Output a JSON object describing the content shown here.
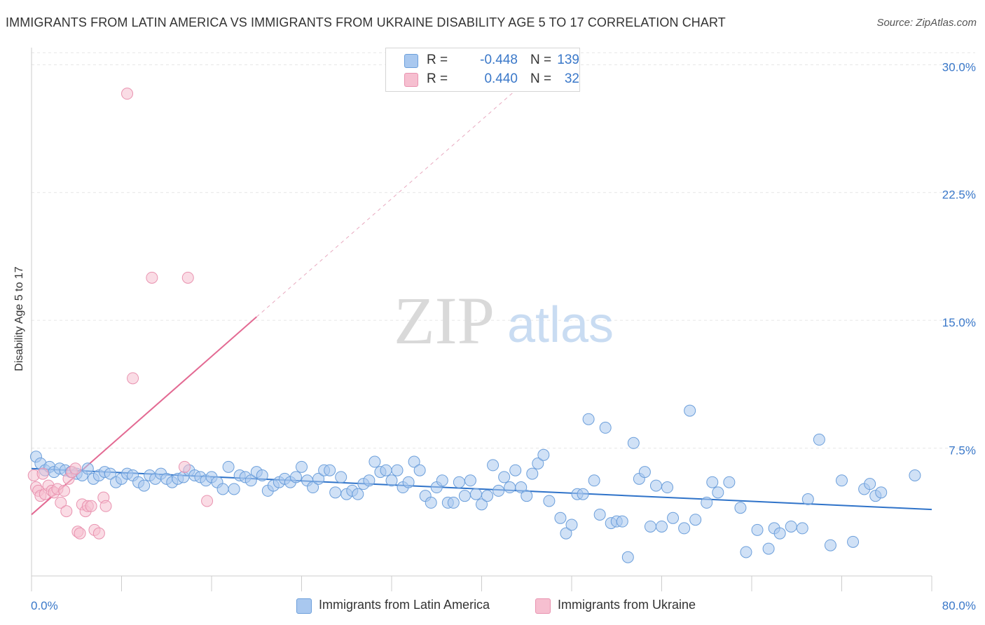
{
  "title": "IMMIGRANTS FROM LATIN AMERICA VS IMMIGRANTS FROM UKRAINE DISABILITY AGE 5 TO 17 CORRELATION CHART",
  "source": "Source: ZipAtlas.com",
  "watermark": {
    "zip": "ZIP",
    "atlas": "atlas"
  },
  "legend": {
    "rows": [
      {
        "r_label": "R =",
        "r_value": "-0.448",
        "n_label": "N =",
        "n_value": "139"
      },
      {
        "r_label": "R =",
        "r_value": "0.440",
        "n_label": "N =",
        "n_value": "32"
      }
    ]
  },
  "colors": {
    "series1_fill": "#a9c8ef",
    "series1_stroke": "#6c9fdb",
    "series1_line": "#2f73c9",
    "series2_fill": "#f6bfd0",
    "series2_stroke": "#e993b0",
    "series2_line": "#e36a93",
    "value_text": "#3a78c9",
    "grid": "#e6e6e6"
  },
  "chart_data": {
    "type": "scatter",
    "title": "IMMIGRANTS FROM LATIN AMERICA VS IMMIGRANTS FROM UKRAINE DISABILITY AGE 5 TO 17 CORRELATION CHART",
    "xlabel": "",
    "ylabel": "Disability Age 5 to 17",
    "xlim": [
      0,
      80
    ],
    "ylim": [
      0,
      31
    ],
    "x_tick_labels": [
      "0.0%",
      "80.0%"
    ],
    "y_ticks": [
      7.5,
      15.0,
      22.5,
      30.0
    ],
    "y_tick_labels": [
      "7.5%",
      "15.0%",
      "22.5%",
      "30.0%"
    ],
    "grid": true,
    "legend_position": "bottom",
    "series": [
      {
        "name": "Immigrants from Latin America",
        "r": -0.448,
        "n": 139,
        "trend": {
          "x": [
            0,
            80
          ],
          "y": [
            6.3,
            3.9
          ]
        },
        "points": [
          [
            0.4,
            7.0
          ],
          [
            0.8,
            6.6
          ],
          [
            1.2,
            6.2
          ],
          [
            1.6,
            6.4
          ],
          [
            2.0,
            6.1
          ],
          [
            2.5,
            6.3
          ],
          [
            3.0,
            6.2
          ],
          [
            3.5,
            6.1
          ],
          [
            4.0,
            6.0
          ],
          [
            4.5,
            5.9
          ],
          [
            5.0,
            6.3
          ],
          [
            5.5,
            5.7
          ],
          [
            6.0,
            5.9
          ],
          [
            6.5,
            6.1
          ],
          [
            7.0,
            6.0
          ],
          [
            7.5,
            5.5
          ],
          [
            8.0,
            5.7
          ],
          [
            8.5,
            6.0
          ],
          [
            9.0,
            5.9
          ],
          [
            9.5,
            5.5
          ],
          [
            10.0,
            5.3
          ],
          [
            10.5,
            5.9
          ],
          [
            11.0,
            5.7
          ],
          [
            11.5,
            6.0
          ],
          [
            12.0,
            5.7
          ],
          [
            12.5,
            5.5
          ],
          [
            13.0,
            5.7
          ],
          [
            13.5,
            5.8
          ],
          [
            14.0,
            6.2
          ],
          [
            14.5,
            5.9
          ],
          [
            15.0,
            5.8
          ],
          [
            15.5,
            5.6
          ],
          [
            16.0,
            5.8
          ],
          [
            16.5,
            5.5
          ],
          [
            17.0,
            5.1
          ],
          [
            17.5,
            6.4
          ],
          [
            18.0,
            5.1
          ],
          [
            18.5,
            5.9
          ],
          [
            19.0,
            5.8
          ],
          [
            19.5,
            5.6
          ],
          [
            20.0,
            6.1
          ],
          [
            20.5,
            5.9
          ],
          [
            21.0,
            5.0
          ],
          [
            21.5,
            5.3
          ],
          [
            22.0,
            5.5
          ],
          [
            22.5,
            5.7
          ],
          [
            23.0,
            5.5
          ],
          [
            23.5,
            5.8
          ],
          [
            24.0,
            6.4
          ],
          [
            24.5,
            5.6
          ],
          [
            25.0,
            5.2
          ],
          [
            25.5,
            5.7
          ],
          [
            26.0,
            6.2
          ],
          [
            26.5,
            6.2
          ],
          [
            27.0,
            4.9
          ],
          [
            27.5,
            5.8
          ],
          [
            28.0,
            4.8
          ],
          [
            28.5,
            5.0
          ],
          [
            29.0,
            4.8
          ],
          [
            29.5,
            5.4
          ],
          [
            30.0,
            5.6
          ],
          [
            30.5,
            6.7
          ],
          [
            31.0,
            6.1
          ],
          [
            31.5,
            6.2
          ],
          [
            32.0,
            5.6
          ],
          [
            32.5,
            6.2
          ],
          [
            33.0,
            5.2
          ],
          [
            33.5,
            5.5
          ],
          [
            34.0,
            6.7
          ],
          [
            34.5,
            6.2
          ],
          [
            35.0,
            4.7
          ],
          [
            35.5,
            4.3
          ],
          [
            36.0,
            5.2
          ],
          [
            36.5,
            5.6
          ],
          [
            37.0,
            4.3
          ],
          [
            37.5,
            4.3
          ],
          [
            38.0,
            5.5
          ],
          [
            38.5,
            4.7
          ],
          [
            39.0,
            5.6
          ],
          [
            39.5,
            4.8
          ],
          [
            40.0,
            4.2
          ],
          [
            40.5,
            4.7
          ],
          [
            41.0,
            6.5
          ],
          [
            41.5,
            5.0
          ],
          [
            42.0,
            5.8
          ],
          [
            42.5,
            5.2
          ],
          [
            43.0,
            6.2
          ],
          [
            43.5,
            5.2
          ],
          [
            44.0,
            4.7
          ],
          [
            44.5,
            6.0
          ],
          [
            45.0,
            6.6
          ],
          [
            45.5,
            7.1
          ],
          [
            46.0,
            4.4
          ],
          [
            47.0,
            3.4
          ],
          [
            47.5,
            2.5
          ],
          [
            48.0,
            3.0
          ],
          [
            48.5,
            4.8
          ],
          [
            49.0,
            4.8
          ],
          [
            49.5,
            9.2
          ],
          [
            50.0,
            5.6
          ],
          [
            50.5,
            3.6
          ],
          [
            51.0,
            8.7
          ],
          [
            51.5,
            3.1
          ],
          [
            52.0,
            3.2
          ],
          [
            52.5,
            3.2
          ],
          [
            53.0,
            1.1
          ],
          [
            53.5,
            7.8
          ],
          [
            54.0,
            5.7
          ],
          [
            54.5,
            6.1
          ],
          [
            55.0,
            2.9
          ],
          [
            55.5,
            5.3
          ],
          [
            56.0,
            2.9
          ],
          [
            56.5,
            5.2
          ],
          [
            57.0,
            3.4
          ],
          [
            58.0,
            2.8
          ],
          [
            58.5,
            9.7
          ],
          [
            59.0,
            3.3
          ],
          [
            60.0,
            4.3
          ],
          [
            60.5,
            5.5
          ],
          [
            61.0,
            4.9
          ],
          [
            62.0,
            5.5
          ],
          [
            63.0,
            4.0
          ],
          [
            63.5,
            1.4
          ],
          [
            64.5,
            2.7
          ],
          [
            65.5,
            1.6
          ],
          [
            66.0,
            2.8
          ],
          [
            66.5,
            2.5
          ],
          [
            67.5,
            2.9
          ],
          [
            68.5,
            2.8
          ],
          [
            69.0,
            4.5
          ],
          [
            70.0,
            8.0
          ],
          [
            71.0,
            1.8
          ],
          [
            72.0,
            5.6
          ],
          [
            73.0,
            2.0
          ],
          [
            74.0,
            5.1
          ],
          [
            74.5,
            5.4
          ],
          [
            75.0,
            4.7
          ],
          [
            75.5,
            4.9
          ],
          [
            78.5,
            5.9
          ]
        ]
      },
      {
        "name": "Immigrants from Ukraine",
        "r": 0.44,
        "n": 32,
        "trend": {
          "x": [
            0,
            20
          ],
          "y": [
            3.6,
            15.2
          ],
          "dashed_x": [
            20,
            47
          ],
          "dashed_y": [
            15.2,
            30.8
          ]
        },
        "points": [
          [
            0.2,
            5.9
          ],
          [
            0.4,
            5.2
          ],
          [
            0.6,
            5.0
          ],
          [
            0.8,
            4.7
          ],
          [
            1.0,
            6.0
          ],
          [
            1.2,
            4.8
          ],
          [
            1.5,
            5.3
          ],
          [
            1.8,
            5.0
          ],
          [
            2.0,
            4.9
          ],
          [
            2.3,
            5.1
          ],
          [
            2.6,
            4.3
          ],
          [
            2.9,
            5.0
          ],
          [
            3.1,
            3.8
          ],
          [
            3.3,
            5.7
          ],
          [
            3.6,
            6.1
          ],
          [
            3.9,
            6.3
          ],
          [
            4.1,
            2.6
          ],
          [
            4.3,
            2.5
          ],
          [
            4.5,
            4.2
          ],
          [
            4.8,
            3.8
          ],
          [
            5.0,
            4.1
          ],
          [
            5.3,
            4.1
          ],
          [
            5.6,
            2.7
          ],
          [
            6.0,
            2.5
          ],
          [
            6.4,
            4.6
          ],
          [
            6.6,
            4.1
          ],
          [
            8.5,
            28.3
          ],
          [
            9.0,
            11.6
          ],
          [
            10.7,
            17.5
          ],
          [
            13.9,
            17.5
          ],
          [
            13.6,
            6.4
          ],
          [
            15.6,
            4.4
          ]
        ]
      }
    ]
  }
}
